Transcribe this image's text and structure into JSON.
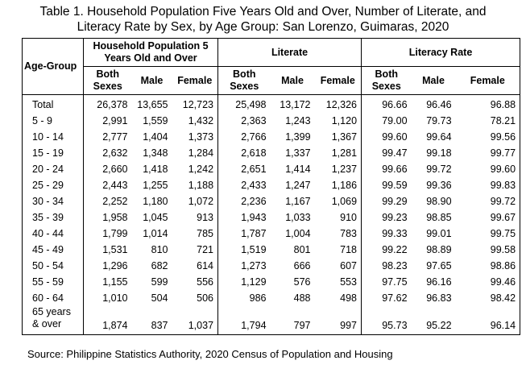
{
  "title": [
    "Table 1. Household Population Five Years Old and Over, Number of Literate, and",
    "Literacy Rate by Sex, by Age Group: San Lorenzo, Guimaras, 2020"
  ],
  "table": {
    "row_header": "Age-Group",
    "groups": [
      "Household Population 5 Years Old and Over",
      "Literate",
      "Literacy Rate"
    ],
    "columns": [
      "Both Sexes",
      "Male",
      "Female",
      "Both Sexes",
      "Male",
      "Female",
      "Both Sexes",
      "Male",
      "Female"
    ],
    "rows": [
      [
        "Total",
        "26,378",
        "13,655",
        "12,723",
        "25,498",
        "13,172",
        "12,326",
        "96.66",
        "96.46",
        "96.88"
      ],
      [
        "5 - 9",
        "2,991",
        "1,559",
        "1,432",
        "2,363",
        "1,243",
        "1,120",
        "79.00",
        "79.73",
        "78.21"
      ],
      [
        "10 - 14",
        "2,777",
        "1,404",
        "1,373",
        "2,766",
        "1,399",
        "1,367",
        "99.60",
        "99.64",
        "99.56"
      ],
      [
        "15 - 19",
        "2,632",
        "1,348",
        "1,284",
        "2,618",
        "1,337",
        "1,281",
        "99.47",
        "99.18",
        "99.77"
      ],
      [
        "20 - 24",
        "2,660",
        "1,418",
        "1,242",
        "2,651",
        "1,414",
        "1,237",
        "99.66",
        "99.72",
        "99.60"
      ],
      [
        "25 - 29",
        "2,443",
        "1,255",
        "1,188",
        "2,433",
        "1,247",
        "1,186",
        "99.59",
        "99.36",
        "99.83"
      ],
      [
        "30 - 34",
        "2,252",
        "1,180",
        "1,072",
        "2,236",
        "1,167",
        "1,069",
        "99.29",
        "98.90",
        "99.72"
      ],
      [
        "35 - 39",
        "1,958",
        "1,045",
        "913",
        "1,943",
        "1,033",
        "910",
        "99.23",
        "98.85",
        "99.67"
      ],
      [
        "40 - 44",
        "1,799",
        "1,014",
        "785",
        "1,787",
        "1,004",
        "783",
        "99.33",
        "99.01",
        "99.75"
      ],
      [
        "45 - 49",
        "1,531",
        "810",
        "721",
        "1,519",
        "801",
        "718",
        "99.22",
        "98.89",
        "99.58"
      ],
      [
        "50 - 54",
        "1,296",
        "682",
        "614",
        "1,273",
        "666",
        "607",
        "98.23",
        "97.65",
        "98.86"
      ],
      [
        "55 - 59",
        "1,155",
        "599",
        "556",
        "1,129",
        "576",
        "553",
        "97.75",
        "96.16",
        "99.46"
      ],
      [
        "60 - 64",
        "1,010",
        "504",
        "506",
        "986",
        "488",
        "498",
        "97.62",
        "96.83",
        "98.42"
      ],
      [
        "65 years\n& over",
        "1,874",
        "837",
        "1,037",
        "1,794",
        "797",
        "997",
        "95.73",
        "95.22",
        "96.14"
      ]
    ]
  },
  "source": "Source: Philippine Statistics Authority, 2020 Census of Population and Housing"
}
